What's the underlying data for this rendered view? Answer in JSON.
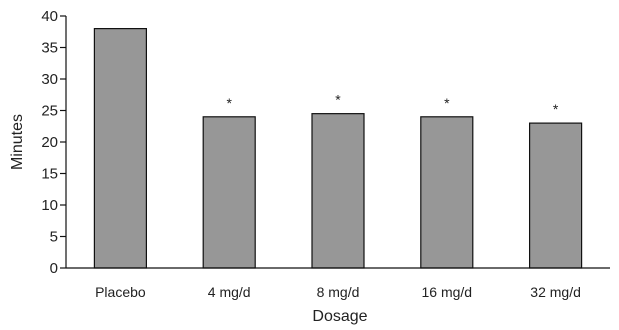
{
  "chart_data": {
    "type": "bar",
    "categories": [
      "Placebo",
      "4 mg/d",
      "8 mg/d",
      "16 mg/d",
      "32 mg/d"
    ],
    "values": [
      38,
      24,
      24.5,
      24,
      23
    ],
    "annotations": [
      "",
      "*",
      "*",
      "*",
      "*"
    ],
    "xlabel": "Dosage",
    "ylabel": "Minutes",
    "ylim": [
      0,
      40
    ],
    "yticks": [
      0,
      5,
      10,
      15,
      20,
      25,
      30,
      35,
      40
    ],
    "grid": false,
    "legend": "none",
    "colors": {
      "bar_fill": "#979797",
      "bar_stroke": "#111111",
      "axis": "#111111"
    }
  }
}
